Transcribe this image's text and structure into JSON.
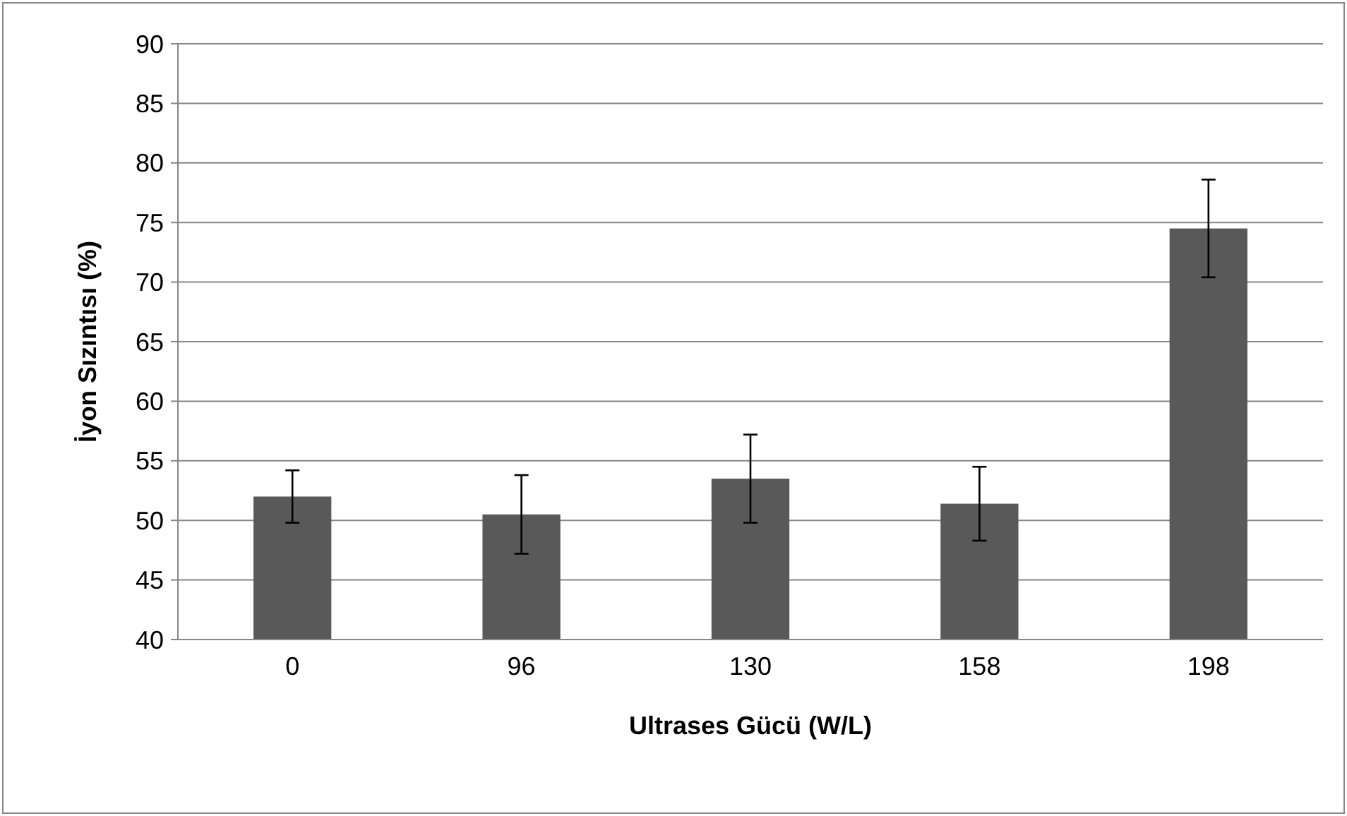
{
  "chart_data": {
    "type": "bar",
    "xlabel": "Ultrases Gücü (W/L)",
    "ylabel": "İyon Sızıntısı (%)",
    "categories": [
      "0",
      "96",
      "130",
      "158",
      "198"
    ],
    "values": [
      52,
      50.5,
      53.5,
      51.4,
      74.5
    ],
    "errors": [
      2.2,
      3.3,
      3.7,
      3.1,
      4.1
    ],
    "color": "#595959",
    "ylim": [
      40,
      90
    ],
    "yticks": [
      40,
      45,
      50,
      55,
      60,
      65,
      70,
      75,
      80,
      85,
      90
    ],
    "grid": "y"
  }
}
